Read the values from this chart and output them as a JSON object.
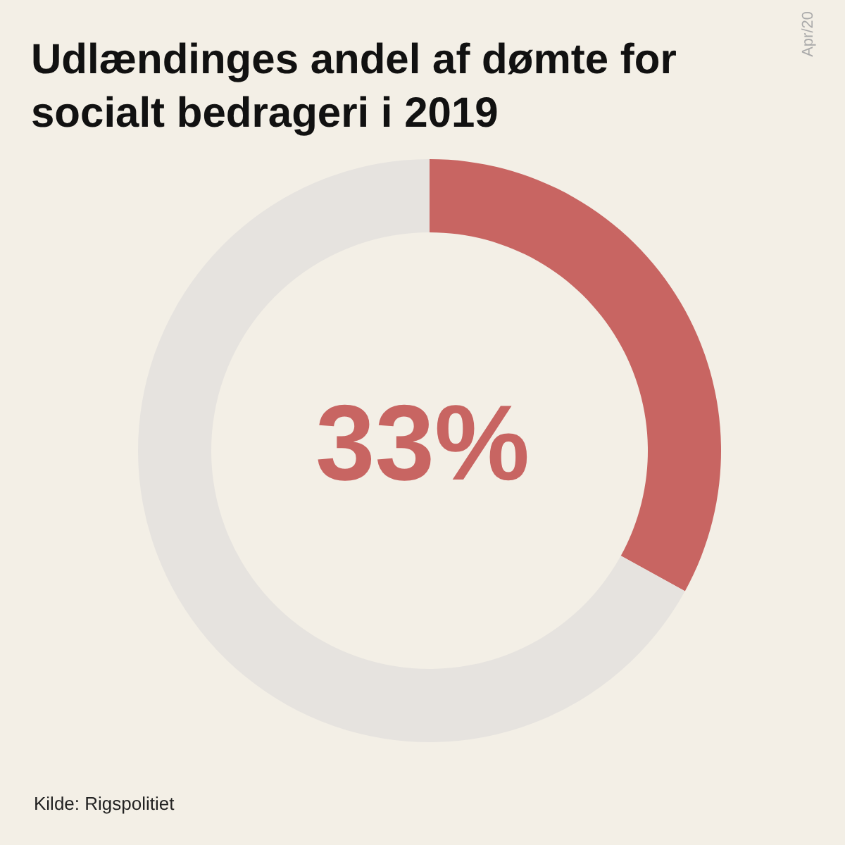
{
  "chart_data": {
    "type": "donut",
    "title": "Udlændinges andel af dømte for socialt bedrageri i 2019",
    "categories": [
      null,
      null
    ],
    "values": [
      33,
      67
    ],
    "colors": [
      "#c86562",
      "#e6e3df"
    ],
    "legend": false,
    "annotations": [
      "33%",
      "Kilde: Rigspolitiet",
      "Apr/20"
    ]
  }
}
